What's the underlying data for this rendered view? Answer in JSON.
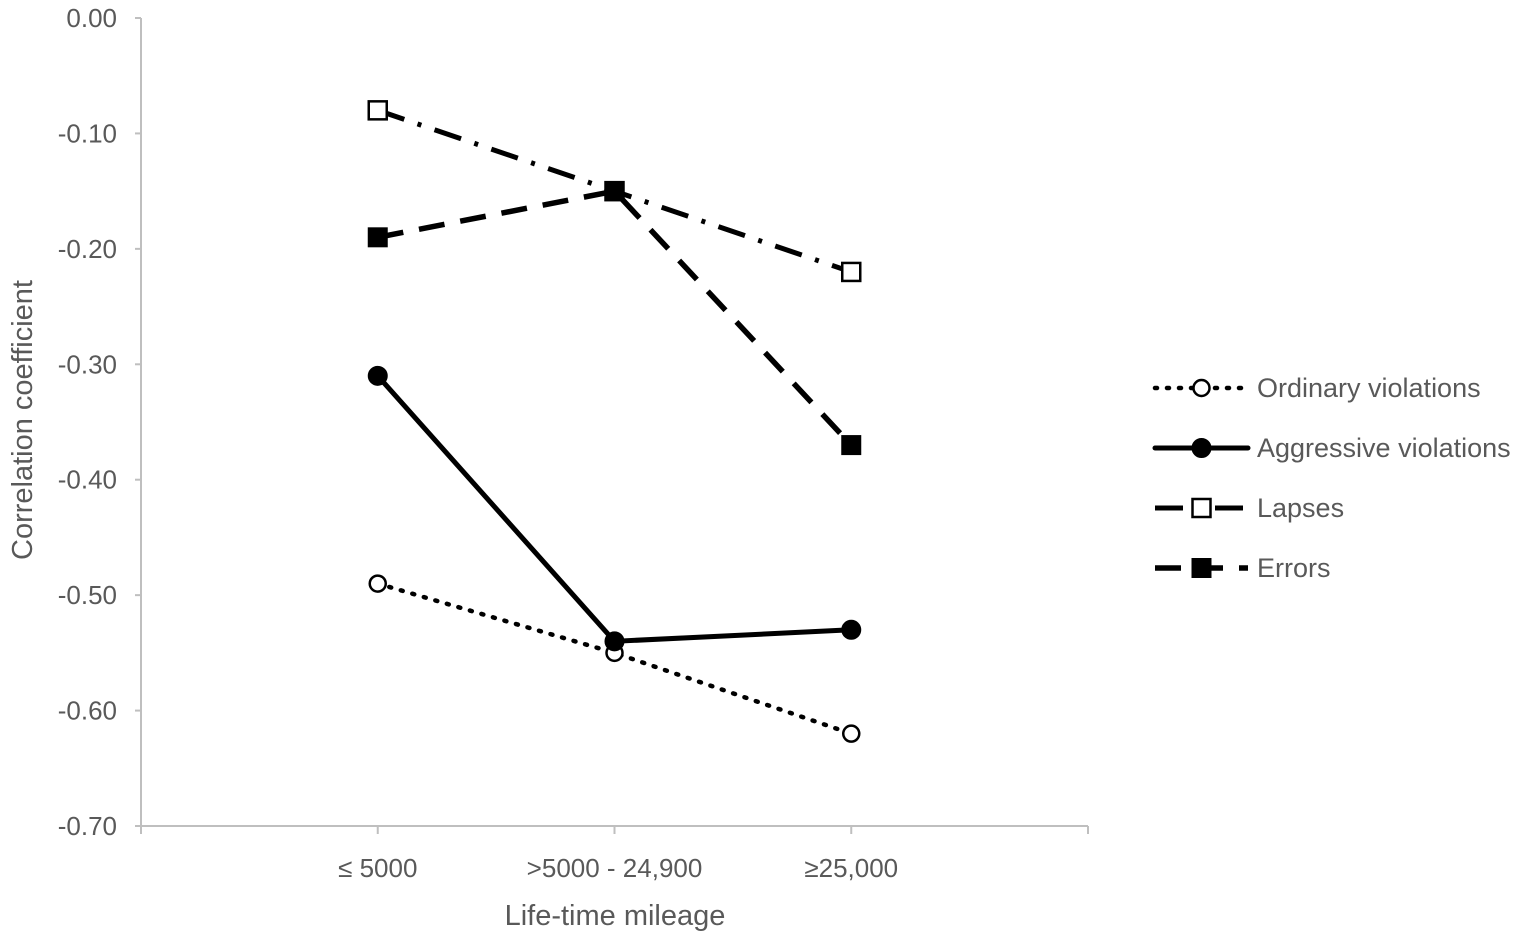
{
  "chart_data": {
    "type": "line",
    "title": "",
    "xlabel": "Life-time mileage",
    "ylabel": "Correlation coefficient",
    "categories": [
      "≤ 5000",
      ">5000 - 24,900",
      "≥25,000"
    ],
    "ylim": [
      -0.7,
      0.0
    ],
    "yticks": [
      "0.00",
      "-0.10",
      "-0.20",
      "-0.30",
      "-0.40",
      "-0.50",
      "-0.60",
      "-0.70"
    ],
    "grid": false,
    "legend_position": "right",
    "series": [
      {
        "name": "Ordinary violations",
        "values": [
          -0.49,
          -0.55,
          -0.62
        ],
        "line_style": "dotted",
        "marker": "open-circle",
        "color": "#000000"
      },
      {
        "name": "Aggressive violations",
        "values": [
          -0.31,
          -0.54,
          -0.53
        ],
        "line_style": "solid",
        "marker": "filled-circle",
        "color": "#000000"
      },
      {
        "name": "Lapses",
        "values": [
          -0.08,
          -0.15,
          -0.22
        ],
        "line_style": "dash-dot",
        "marker": "open-square",
        "color": "#000000"
      },
      {
        "name": "Errors",
        "values": [
          -0.19,
          -0.15,
          -0.37
        ],
        "line_style": "dashed",
        "marker": "filled-square",
        "color": "#000000"
      }
    ]
  }
}
